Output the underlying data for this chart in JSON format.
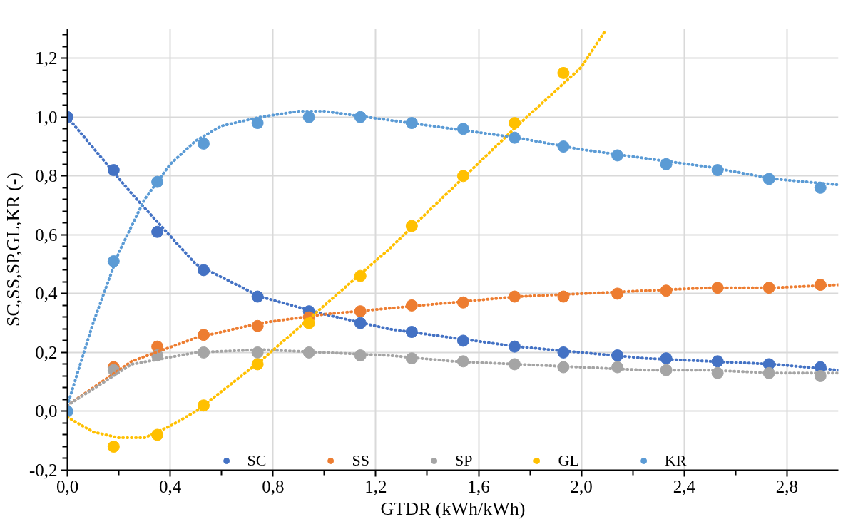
{
  "chart_data": {
    "type": "scatter",
    "xlabel": "GTDR (kWh/kWh)",
    "ylabel": "SC,SS,SP,GL,KR (-)",
    "x": [
      0,
      0.18,
      0.35,
      0.53,
      0.74,
      0.94,
      1.14,
      1.34,
      1.54,
      1.74,
      1.93,
      2.14,
      2.33,
      2.53,
      2.73,
      2.93
    ],
    "series": [
      {
        "name": "SC",
        "color": "#4472c4",
        "values": [
          1.0,
          0.82,
          0.61,
          0.48,
          0.39,
          0.34,
          0.3,
          0.27,
          0.24,
          0.22,
          0.2,
          0.19,
          0.18,
          0.17,
          0.16,
          0.15
        ]
      },
      {
        "name": "SS",
        "color": "#ed7d31",
        "values": [
          null,
          0.15,
          0.22,
          0.26,
          0.29,
          0.32,
          0.34,
          0.36,
          0.37,
          0.39,
          0.39,
          0.4,
          0.41,
          0.42,
          0.42,
          0.43
        ]
      },
      {
        "name": "SP",
        "color": "#a5a5a5",
        "values": [
          null,
          0.14,
          0.19,
          0.2,
          0.2,
          0.2,
          0.19,
          0.18,
          0.17,
          0.16,
          0.15,
          0.15,
          0.14,
          0.13,
          0.13,
          0.12
        ]
      },
      {
        "name": "GL",
        "color": "#ffc000",
        "x": [
          0.18,
          0.35,
          0.53,
          0.74,
          0.94,
          1.14,
          1.34,
          1.54,
          1.74,
          1.93
        ],
        "values": [
          -0.12,
          -0.08,
          0.02,
          0.16,
          0.3,
          0.46,
          0.63,
          0.8,
          0.98,
          1.15
        ]
      },
      {
        "name": "KR",
        "color": "#5b9bd5",
        "values": [
          0,
          0.51,
          0.78,
          0.91,
          0.98,
          1.0,
          1.0,
          0.98,
          0.96,
          0.93,
          0.9,
          0.87,
          0.84,
          0.82,
          0.79,
          0.76
        ]
      },
      {
        "type": "line",
        "marker": "none",
        "line_style": "dotted",
        "color": "#4472c4",
        "x": [
          0,
          0.25,
          0.5,
          0.75,
          1.0,
          1.25,
          1.5,
          1.75,
          2.0,
          2.25,
          2.5,
          2.75,
          3.0
        ],
        "values": [
          1.0,
          0.74,
          0.5,
          0.39,
          0.33,
          0.28,
          0.25,
          0.22,
          0.2,
          0.18,
          0.17,
          0.16,
          0.14
        ]
      },
      {
        "type": "line",
        "marker": "none",
        "line_style": "dotted",
        "color": "#ed7d31",
        "x": [
          0,
          0.25,
          0.5,
          0.75,
          1.0,
          1.25,
          1.5,
          1.75,
          2.0,
          2.25,
          2.5,
          2.75,
          3.0
        ],
        "values": [
          0.02,
          0.17,
          0.25,
          0.3,
          0.33,
          0.35,
          0.37,
          0.39,
          0.4,
          0.41,
          0.42,
          0.42,
          0.43
        ]
      },
      {
        "type": "line",
        "marker": "none",
        "line_style": "dotted",
        "color": "#a5a5a5",
        "x": [
          0,
          0.25,
          0.5,
          0.75,
          1.0,
          1.25,
          1.5,
          1.75,
          2.0,
          2.25,
          2.5,
          2.75,
          3.0
        ],
        "values": [
          0.02,
          0.16,
          0.2,
          0.21,
          0.2,
          0.19,
          0.17,
          0.16,
          0.15,
          0.14,
          0.14,
          0.13,
          0.13
        ]
      },
      {
        "type": "line",
        "marker": "none",
        "line_style": "dotted",
        "color": "#ffc000",
        "x": [
          0,
          0.1,
          0.2,
          0.3,
          0.4,
          0.5,
          0.75,
          1.0,
          1.25,
          1.5,
          1.75,
          2.0,
          2.09
        ],
        "values": [
          -0.02,
          -0.07,
          -0.09,
          -0.09,
          -0.05,
          0.0,
          0.17,
          0.36,
          0.55,
          0.76,
          0.97,
          1.17,
          1.29
        ]
      },
      {
        "type": "line",
        "marker": "none",
        "line_style": "dotted",
        "color": "#5b9bd5",
        "x": [
          0,
          0.1,
          0.2,
          0.3,
          0.4,
          0.5,
          0.6,
          0.75,
          0.9,
          1.0,
          1.25,
          1.5,
          1.75,
          2.0,
          2.25,
          2.5,
          2.75,
          3.0
        ],
        "values": [
          0.02,
          0.3,
          0.54,
          0.72,
          0.84,
          0.92,
          0.97,
          1.0,
          1.02,
          1.02,
          0.99,
          0.96,
          0.93,
          0.89,
          0.86,
          0.83,
          0.79,
          0.77
        ]
      }
    ],
    "xlim": [
      0,
      3.0
    ],
    "ylim": [
      -0.2,
      1.3
    ],
    "xticks": [
      {
        "value": 0,
        "label": "0,0"
      },
      {
        "value": 0.2,
        "label": null
      },
      {
        "value": 0.4,
        "label": "0,4"
      },
      {
        "value": 0.6,
        "label": null
      },
      {
        "value": 0.8,
        "label": "0,8"
      },
      {
        "value": 1.0,
        "label": null
      },
      {
        "value": 1.2,
        "label": "1,2"
      },
      {
        "value": 1.4,
        "label": null
      },
      {
        "value": 1.6,
        "label": "1,6"
      },
      {
        "value": 1.8,
        "label": null
      },
      {
        "value": 2.0,
        "label": "2,0"
      },
      {
        "value": 2.2,
        "label": null
      },
      {
        "value": 2.4,
        "label": "2,4"
      },
      {
        "value": 2.6,
        "label": null
      },
      {
        "value": 2.8,
        "label": "2,8"
      }
    ],
    "yticks": [
      {
        "value": -0.2,
        "label": "-0,2"
      },
      {
        "value": -0.16,
        "label": null
      },
      {
        "value": -0.12,
        "label": null
      },
      {
        "value": -0.08,
        "label": null
      },
      {
        "value": -0.04,
        "label": null
      },
      {
        "value": 0,
        "label": "0,0"
      },
      {
        "value": 0.04,
        "label": null
      },
      {
        "value": 0.08,
        "label": null
      },
      {
        "value": 0.12,
        "label": null
      },
      {
        "value": 0.16,
        "label": null
      },
      {
        "value": 0.2,
        "label": "0,2"
      },
      {
        "value": 0.24,
        "label": null
      },
      {
        "value": 0.28,
        "label": null
      },
      {
        "value": 0.32,
        "label": null
      },
      {
        "value": 0.36,
        "label": null
      },
      {
        "value": 0.4,
        "label": "0,4"
      },
      {
        "value": 0.44,
        "label": null
      },
      {
        "value": 0.48,
        "label": null
      },
      {
        "value": 0.52,
        "label": null
      },
      {
        "value": 0.56,
        "label": null
      },
      {
        "value": 0.6,
        "label": "0,6"
      },
      {
        "value": 0.64,
        "label": null
      },
      {
        "value": 0.68,
        "label": null
      },
      {
        "value": 0.72,
        "label": null
      },
      {
        "value": 0.76,
        "label": null
      },
      {
        "value": 0.8,
        "label": "0,8"
      },
      {
        "value": 0.84,
        "label": null
      },
      {
        "value": 0.88,
        "label": null
      },
      {
        "value": 0.92,
        "label": null
      },
      {
        "value": 0.96,
        "label": null
      },
      {
        "value": 1.0,
        "label": "1,0"
      },
      {
        "value": 1.04,
        "label": null
      },
      {
        "value": 1.08,
        "label": null
      },
      {
        "value": 1.12,
        "label": null
      },
      {
        "value": 1.16,
        "label": null
      },
      {
        "value": 1.2,
        "label": "1,2"
      },
      {
        "value": 1.24,
        "label": null
      },
      {
        "value": 1.28,
        "label": null
      }
    ],
    "grid": true,
    "legend": "bottom",
    "marker": "circle"
  }
}
